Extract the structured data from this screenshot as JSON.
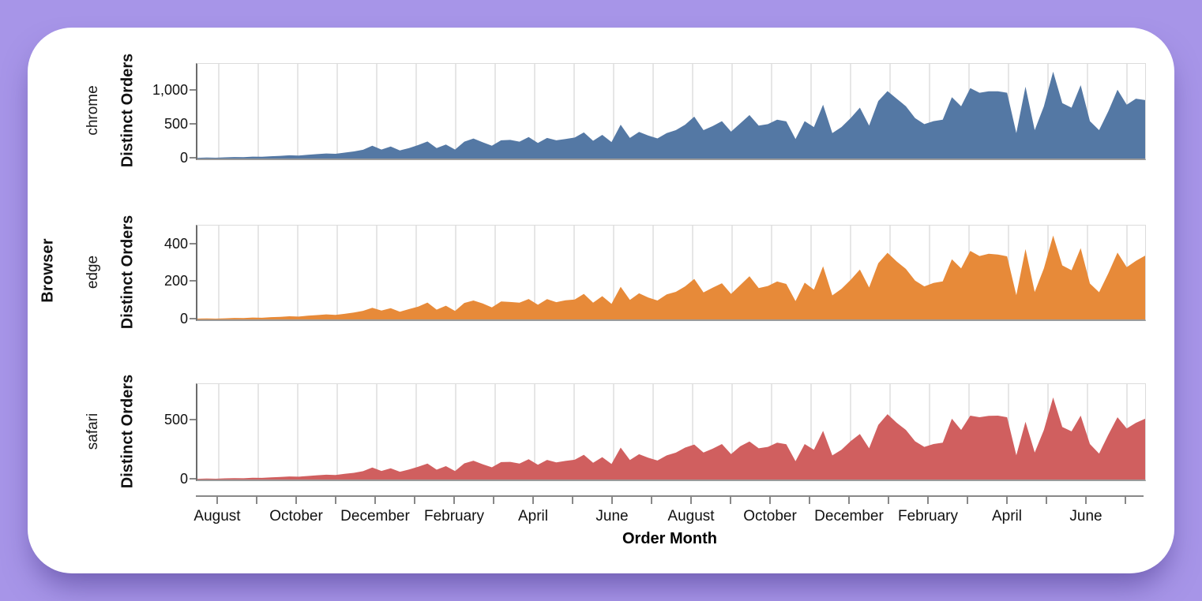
{
  "page": {
    "background_color": "#a795e8",
    "card_color": "#ffffff"
  },
  "chart_data": {
    "type": "area",
    "layout": "faceted-rows",
    "facet_field_label": "Browser",
    "xlabel": "Order Month",
    "ylabel": "Distinct Orders",
    "grid": true,
    "x_months": 24,
    "x_tick_labels": [
      "August",
      "October",
      "December",
      "February",
      "April",
      "June",
      "August",
      "October",
      "December",
      "February",
      "April",
      "June"
    ],
    "axis_color": "#888888",
    "gridline_color": "#dcdcdc",
    "facets": [
      {
        "browser": "chrome",
        "color": "#5478a4",
        "ylim": [
          0,
          1400
        ],
        "yticks": [
          0,
          500,
          1000
        ],
        "ytick_labels": [
          "0",
          "500",
          "1,000"
        ],
        "values": [
          10,
          14,
          12,
          18,
          22,
          20,
          28,
          26,
          34,
          40,
          48,
          44,
          55,
          65,
          75,
          70,
          88,
          105,
          130,
          190,
          133,
          177,
          120,
          155,
          200,
          252,
          155,
          208,
          133,
          250,
          296,
          240,
          190,
          270,
          275,
          250,
          319,
          230,
          305,
          270,
          288,
          310,
          386,
          262,
          350,
          244,
          501,
          305,
          394,
          340,
          297,
          377,
          420,
          500,
          620,
          420,
          480,
          553,
          398,
          520,
          643,
          487,
          509,
          575,
          550,
          288,
          553,
          465,
          797,
          377,
          465,
          600,
          753,
          487,
          850,
          997,
          885,
          774,
          597,
          509,
          553,
          575,
          908,
          774,
          1041,
          973,
          995,
          995,
          973,
          377,
          1063,
          420,
          774,
          1284,
          820,
          752,
          1085,
          553,
          420,
          700,
          1019,
          796,
          885,
          864
        ]
      },
      {
        "browser": "edge",
        "color": "#e78a39",
        "ylim": [
          0,
          500
        ],
        "yticks": [
          0,
          200,
          400
        ],
        "ytick_labels": [
          "0",
          "200",
          "400"
        ],
        "values": [
          4,
          5,
          4,
          6,
          8,
          7,
          10,
          9,
          12,
          14,
          17,
          15,
          20,
          23,
          27,
          24,
          30,
          37,
          46,
          62,
          47,
          60,
          41,
          55,
          68,
          90,
          52,
          73,
          45,
          88,
          101,
          85,
          64,
          96,
          93,
          89,
          109,
          78,
          108,
          92,
          102,
          106,
          136,
          89,
          124,
          83,
          174,
          104,
          139,
          117,
          101,
          133,
          147,
          176,
          216,
          144,
          169,
          193,
          136,
          183,
          230,
          167,
          178,
          202,
          189,
          98,
          196,
          159,
          283,
          128,
          163,
          211,
          266,
          170,
          299,
          355,
          309,
          269,
          207,
          176,
          194,
          203,
          320,
          272,
          365,
          338,
          350,
          346,
          336,
          129,
          375,
          146,
          272,
          447,
          288,
          262,
          380,
          191,
          145,
          246,
          356,
          278,
          312,
          340
        ]
      },
      {
        "browser": "safari",
        "color": "#d05f5f",
        "ylim": [
          0,
          810
        ],
        "yticks": [
          0,
          500
        ],
        "ytick_labels": [
          "0",
          "500"
        ],
        "values": [
          6,
          8,
          7,
          10,
          12,
          11,
          15,
          14,
          19,
          22,
          26,
          24,
          30,
          36,
          41,
          38,
          48,
          57,
          71,
          102,
          73,
          96,
          66,
          85,
          109,
          136,
          84,
          114,
          72,
          137,
          160,
          130,
          104,
          148,
          150,
          135,
          173,
          126,
          167,
          146,
          158,
          168,
          210,
          142,
          190,
          132,
          271,
          166,
          215,
          185,
          161,
          205,
          228,
          271,
          297,
          229,
          262,
          301,
          216,
          283,
          323,
          265,
          277,
          313,
          299,
          155,
          301,
          253,
          413,
          205,
          253,
          327,
          387,
          265,
          463,
          555,
          482,
          421,
          325,
          277,
          301,
          313,
          516,
          421,
          542,
          529,
          541,
          542,
          529,
          206,
          490,
          229,
          421,
          697,
          446,
          409,
          542,
          301,
          220,
          381,
          529,
          433,
          481,
          516
        ]
      }
    ]
  }
}
